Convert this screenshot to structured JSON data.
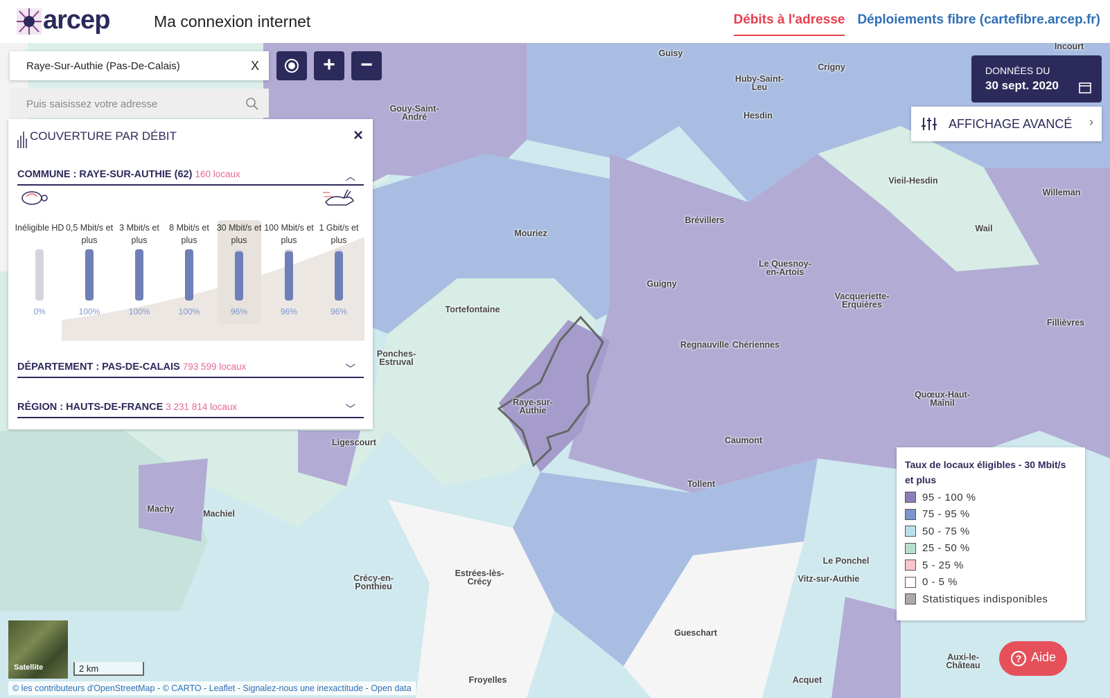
{
  "header": {
    "logo": "arcep",
    "title": "Ma connexion internet",
    "nav": [
      "Débits à l'adresse",
      "Déploiements fibre (cartefibre.arcep.fr)"
    ]
  },
  "search": {
    "commune": "Raye-Sur-Authie (Pas-De-Calais)",
    "clear": "X",
    "address_placeholder": "Puis saisissez votre adresse"
  },
  "date": {
    "label": "DONNÉES DU",
    "value": "30 sept. 2020"
  },
  "advanced": "AFFICHAGE AVANCÉ",
  "panel": {
    "title": "COUVERTURE PAR DÉBIT",
    "close": "×",
    "sections": [
      {
        "name": "COMMUNE : RAYE-SUR-AUTHIE (62)",
        "count": "160 locaux"
      },
      {
        "name": "DÉPARTEMENT : PAS-DE-CALAIS",
        "count": "793 599 locaux"
      },
      {
        "name": "RÉGION : HAUTS-DE-FRANCE",
        "count": "3 231 814 locaux"
      }
    ],
    "levels": [
      {
        "label": "Inéligible HD",
        "value": 0,
        "value_label": "0%"
      },
      {
        "label": "0,5 Mbit/s et plus",
        "value": 100,
        "value_label": "100%"
      },
      {
        "label": "3 Mbit/s et plus",
        "value": 100,
        "value_label": "100%"
      },
      {
        "label": "8 Mbit/s et plus",
        "value": 100,
        "value_label": "100%"
      },
      {
        "label": "30 Mbit/s et plus",
        "value": 96,
        "value_label": "96%"
      },
      {
        "label": "100 Mbit/s et plus",
        "value": 96,
        "value_label": "96%"
      },
      {
        "label": "1 Gbit/s et plus",
        "value": 96,
        "value_label": "96%"
      }
    ]
  },
  "legend": {
    "title": "Taux de locaux éligibles - 30 Mbit/s et plus",
    "items": [
      {
        "label": "95 - 100 %",
        "color": "#8b7fb8"
      },
      {
        "label": "75 - 95 %",
        "color": "#7d96cc"
      },
      {
        "label": "50 - 75 %",
        "color": "#b9e0ea"
      },
      {
        "label": "25 - 50 %",
        "color": "#b7dfcf"
      },
      {
        "label": "5 - 25 %",
        "color": "#f7c6cc"
      },
      {
        "label": "0 - 5 %",
        "color": "#ffffff"
      },
      {
        "label": "Statistiques indisponibles",
        "color": "#aaaaaa"
      }
    ]
  },
  "map_labels": [
    "Guisy",
    "Crigny",
    "Incourt",
    "Huby-Saint-Leu",
    "Hesdin",
    "Gouy-Saint-André",
    "Vieil-Hesdin",
    "Willeman",
    "Mouriez",
    "Brévillers",
    "Wail",
    "Le Quesnoy-en-Artois",
    "Guigny",
    "Vacqueriette-Erquières",
    "Tortefontaine",
    "Fillièvres",
    "Regnauville",
    "Chériennes",
    "Ponches-Estruval",
    "Raye-sur-Authie",
    "Quœux-Haut-Maînil",
    "Caumont",
    "Ligescourt",
    "Tollent",
    "Machy",
    "Machiel",
    "Le Ponchel",
    "Vitz-sur-Authie",
    "Crécy-en-Ponthieu",
    "Estrées-lès-Crécy",
    "Gueschart",
    "Auxi-le-Château",
    "Acquet",
    "Froyelles"
  ],
  "satellite": "Satellite",
  "scale": "2 km",
  "help": "Aide",
  "attribution": {
    "separator": "-",
    "items": [
      "© les contributeurs d'OpenStreetMap",
      "© CARTO",
      "Leaflet",
      "Signalez-nous une inexactitude",
      "Open data"
    ]
  }
}
